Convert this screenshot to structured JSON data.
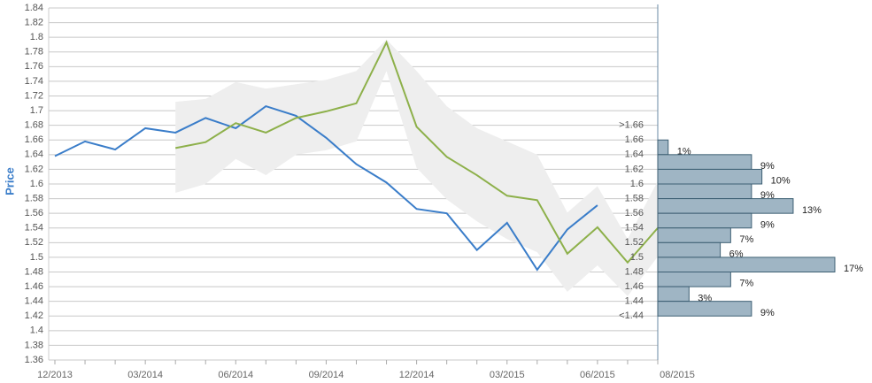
{
  "chart_data": [
    {
      "type": "line",
      "y_label": "Price",
      "categories": [
        "12/2013",
        null,
        null,
        "03/2014",
        null,
        null,
        "06/2014",
        null,
        null,
        "09/2014",
        null,
        null,
        "12/2014",
        null,
        null,
        "03/2015",
        null,
        null,
        "06/2015",
        null,
        "08/2015"
      ],
      "ylim": [
        1.36,
        1.84
      ],
      "yticks": [
        1.36,
        1.38,
        1.4,
        1.42,
        1.44,
        1.46,
        1.48,
        1.5,
        1.52,
        1.54,
        1.56,
        1.58,
        1.6,
        1.62,
        1.64,
        1.66,
        1.68,
        1.7,
        1.72,
        1.74,
        1.76,
        1.78,
        1.8,
        1.82,
        1.84
      ],
      "grid": true,
      "band": {
        "color": "#eeeeee",
        "upper": [
          null,
          null,
          null,
          null,
          1.712,
          1.716,
          1.739,
          1.73,
          1.736,
          1.742,
          1.754,
          1.797,
          1.754,
          1.706,
          1.676,
          1.658,
          1.64,
          1.561,
          1.597,
          1.525,
          1.604
        ],
        "lower": [
          null,
          null,
          null,
          null,
          1.588,
          1.6,
          1.634,
          1.612,
          1.64,
          1.646,
          1.658,
          1.754,
          1.622,
          1.579,
          1.549,
          1.525,
          1.507,
          1.453,
          1.489,
          1.447,
          1.501
        ]
      },
      "series": [
        {
          "color": "#3a7dc9",
          "values": [
            1.638,
            1.658,
            1.647,
            1.676,
            1.67,
            1.69,
            1.676,
            1.706,
            1.693,
            1.663,
            1.627,
            1.602,
            1.566,
            1.56,
            1.51,
            1.547,
            1.483,
            1.538,
            1.571,
            null,
            null
          ]
        },
        {
          "color": "#8db04a",
          "values": [
            null,
            null,
            null,
            null,
            1.649,
            1.657,
            1.683,
            1.67,
            1.69,
            1.699,
            1.71,
            1.793,
            1.678,
            1.637,
            1.612,
            1.584,
            1.578,
            1.505,
            1.541,
            1.493,
            1.54
          ]
        }
      ]
    },
    {
      "type": "histogram",
      "orientation": "horizontal",
      "bins": [
        1.66,
        1.64,
        1.62,
        1.6,
        1.58,
        1.56,
        1.54,
        1.52,
        1.5,
        1.48,
        1.46,
        1.44,
        1.42
      ],
      "values": [
        1,
        9,
        10,
        9,
        13,
        9,
        7,
        6,
        17,
        7,
        3,
        9
      ],
      "value_labels": [
        "1%",
        "9%",
        "10%",
        "9%",
        "13%",
        "9%",
        "7%",
        "6%",
        "17%",
        "7%",
        "3%",
        "9%"
      ],
      "xlim": [
        0,
        17
      ],
      "yticks": [
        {
          "value": 1.68,
          "label": ">1.66"
        },
        1.66,
        1.64,
        1.62,
        1.6,
        1.58,
        1.56,
        1.54,
        1.52,
        1.5,
        1.48,
        1.46,
        1.44,
        {
          "value": 1.42,
          "label": "<1.44"
        }
      ],
      "color": "#9fb5c4"
    }
  ]
}
